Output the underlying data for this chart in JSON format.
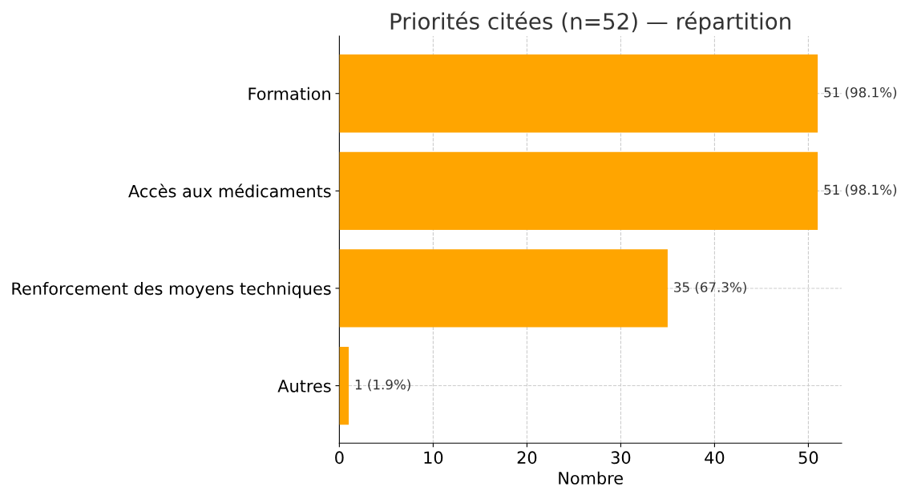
{
  "chart_data": {
    "type": "bar",
    "orientation": "horizontal",
    "title": "Priorités citées (n=52) — répartition",
    "xlabel": "Nombre",
    "categories": [
      "Formation",
      "Accès aux médicaments",
      "Renforcement des moyens techniques",
      "Autres"
    ],
    "values": [
      51,
      51,
      35,
      1
    ],
    "value_labels": [
      "51 (98.1%)",
      "51 (98.1%)",
      "35 (67.3%)",
      "1 (1.9%)"
    ],
    "color": "#ffa500",
    "xlim": [
      0,
      53.55
    ],
    "xticks": [
      0,
      10,
      20,
      30,
      40,
      50
    ],
    "grid": true
  }
}
